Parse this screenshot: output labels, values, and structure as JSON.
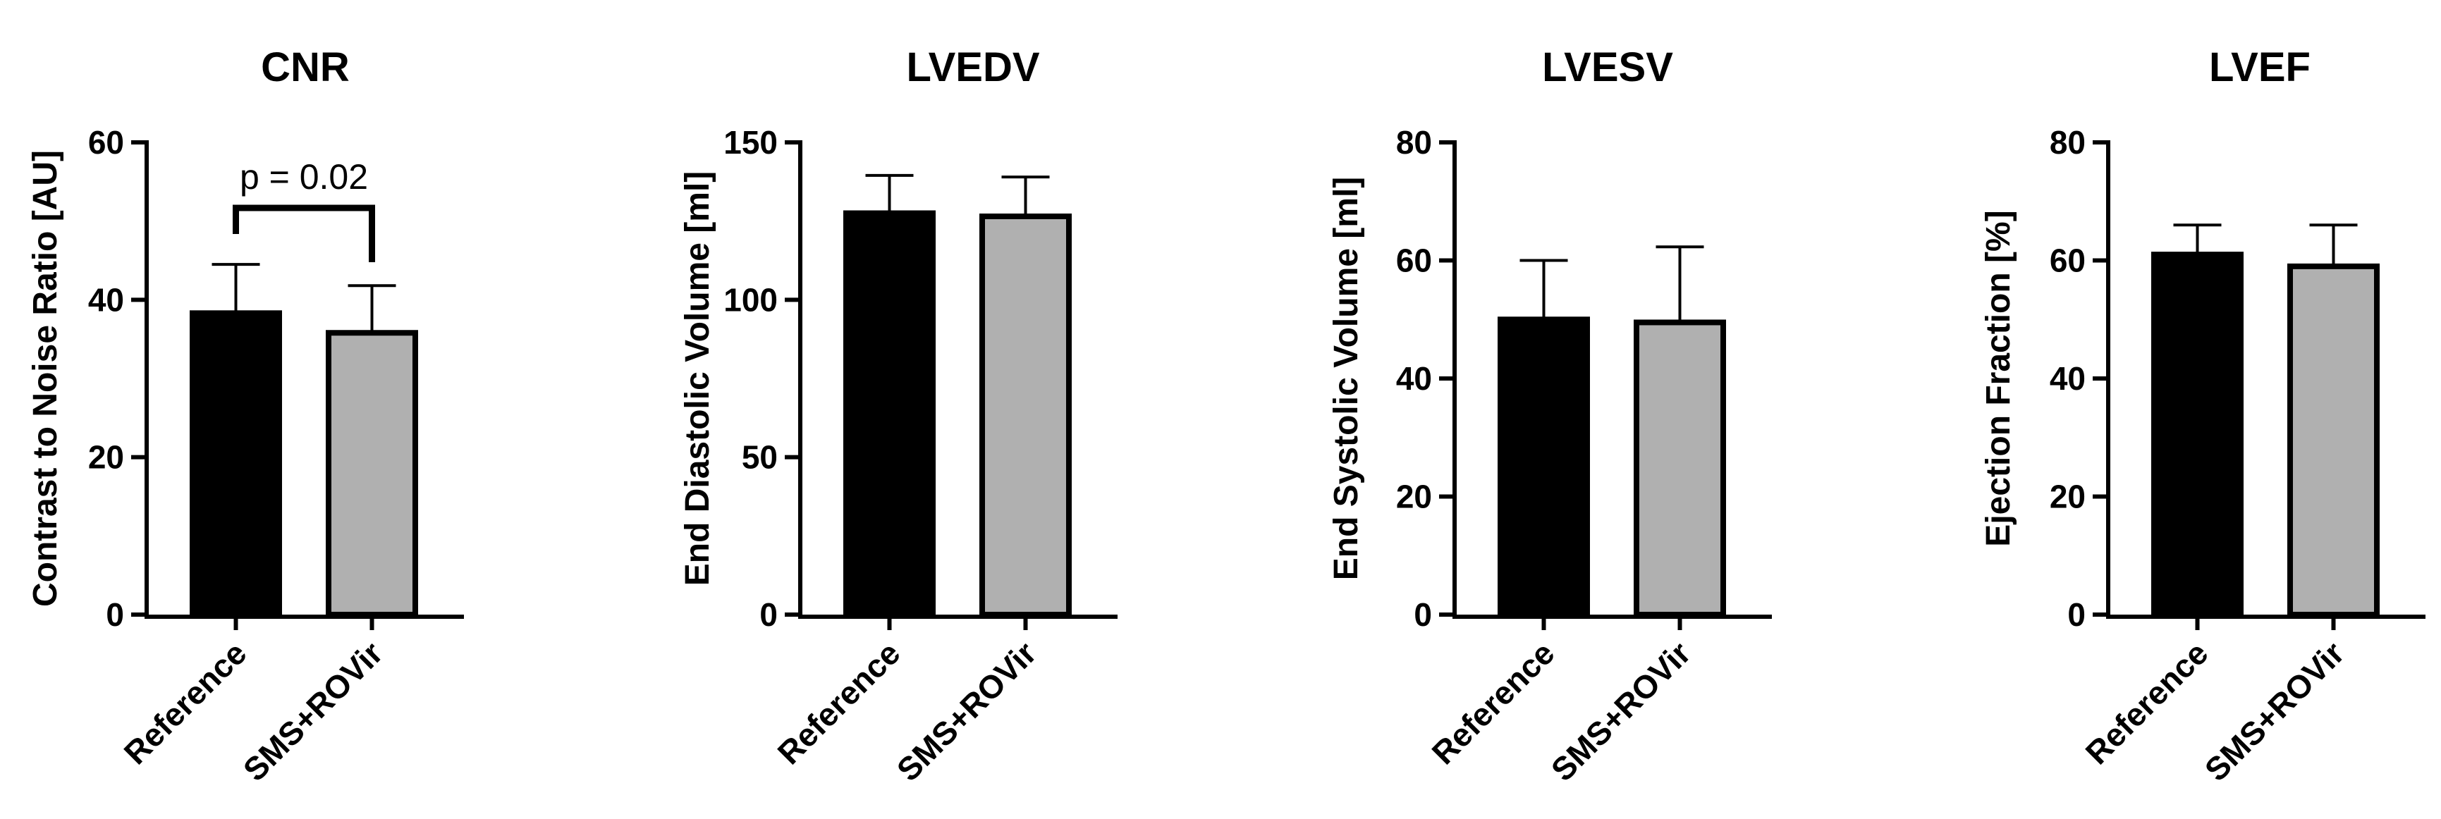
{
  "chart_data": [
    {
      "type": "bar",
      "title": "CNR",
      "ylabel": "Contrast to Noise Ratio [AU]",
      "xlabel": "",
      "categories": [
        "Reference",
        "SMS+ROVir"
      ],
      "values": [
        38.3,
        35.8
      ],
      "errors": [
        6.2,
        6.0
      ],
      "colors": [
        "#000000",
        "#b0b0b0"
      ],
      "ylim": [
        0,
        60
      ],
      "yticks": [
        "0",
        "20",
        "40",
        "60"
      ],
      "annotation": "p = 0.02"
    },
    {
      "type": "bar",
      "title": "LVEDV",
      "ylabel": "End Diastolic Volume [ml]",
      "xlabel": "",
      "categories": [
        "Reference",
        "SMS+ROVir"
      ],
      "values": [
        127.5,
        126.5
      ],
      "errors": [
        12.0,
        12.5
      ],
      "colors": [
        "#000000",
        "#b0b0b0"
      ],
      "ylim": [
        0,
        150
      ],
      "yticks": [
        "0",
        "50",
        "100",
        "150"
      ]
    },
    {
      "type": "bar",
      "title": "LVESV",
      "ylabel": "End Systolic Volume [ml]",
      "xlabel": "",
      "categories": [
        "Reference",
        "SMS+ROVir"
      ],
      "values": [
        50.0,
        49.5
      ],
      "errors": [
        10.0,
        12.8
      ],
      "colors": [
        "#000000",
        "#b0b0b0"
      ],
      "ylim": [
        0,
        80
      ],
      "yticks": [
        "0",
        "20",
        "40",
        "60",
        "80"
      ]
    },
    {
      "type": "bar",
      "title": "LVEF",
      "ylabel": "Ejection Fraction [%]",
      "xlabel": "",
      "categories": [
        "Reference",
        "SMS+ROVir"
      ],
      "values": [
        61.0,
        59.0
      ],
      "errors": [
        5.0,
        7.0
      ],
      "colors": [
        "#000000",
        "#b0b0b0"
      ],
      "ylim": [
        0,
        80
      ],
      "yticks": [
        "0",
        "20",
        "40",
        "60",
        "80"
      ]
    }
  ]
}
